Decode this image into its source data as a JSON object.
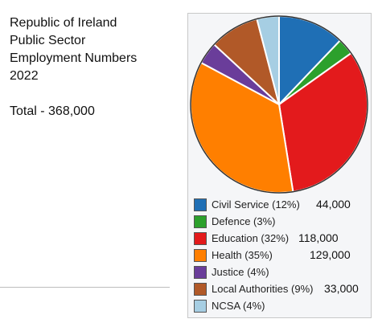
{
  "text": {
    "title_lines": [
      "Republic of Ireland",
      "Public Sector",
      "Employment Numbers",
      "2022"
    ],
    "total": "Total - 368,000"
  },
  "chart_data": {
    "type": "pie",
    "categories": [
      "Civil Service",
      "Defence",
      "Education",
      "Health",
      "Justice",
      "Local Authorities",
      "NCSA"
    ],
    "values": [
      12,
      3,
      32,
      35,
      4,
      9,
      4
    ],
    "legend_labels": [
      "Civil Service (12%)",
      "Defence (3%)",
      "Education (32%)",
      "Health (35%)",
      "Justice (4%)",
      "Local Authorities (9%)",
      "NCSA (4%)"
    ],
    "annotations": [
      "44,000",
      "",
      "118,000",
      "129,000",
      "",
      "33,000",
      ""
    ],
    "colors": [
      "#1f6fb5",
      "#2ca02c",
      "#e31a1c",
      "#ff7f00",
      "#6a3d9a",
      "#b15928",
      "#a6cee3"
    ],
    "legend_placement": "bottom"
  }
}
